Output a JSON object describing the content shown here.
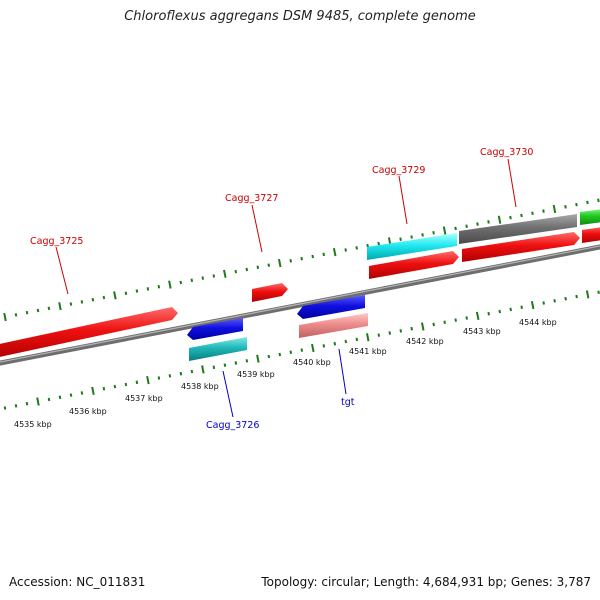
{
  "title": "Chloroflexus aggregans DSM 9485, complete genome",
  "footer": {
    "accession": "Accession: NC_011831",
    "summary": "Topology: circular; Length: 4,684,931 bp; Genes: 3,787"
  },
  "colors": {
    "backbone": "#7a7a7a",
    "tick": "#1f7a1f",
    "label_forward": "#cc0000",
    "label_reverse": "#0000cc"
  },
  "position_ticks": [
    "4535 kbp",
    "4536 kbp",
    "4537 kbp",
    "4538 kbp",
    "4539 kbp",
    "4540 kbp",
    "4541 kbp",
    "4542 kbp",
    "4543 kbp",
    "4544 kbp"
  ],
  "genes": [
    {
      "label": "Cagg_3725",
      "strand": "forward",
      "color": "red"
    },
    {
      "label": "Cagg_3726",
      "strand": "reverse",
      "color": "cyan"
    },
    {
      "label": "Cagg_3727",
      "strand": "forward",
      "color": "red"
    },
    {
      "label": "tgt",
      "strand": "reverse",
      "color": "pink"
    },
    {
      "label": "Cagg_3729",
      "strand": "forward",
      "color": "cyan"
    },
    {
      "label": "Cagg_3730",
      "strand": "forward",
      "color": "gray"
    }
  ]
}
